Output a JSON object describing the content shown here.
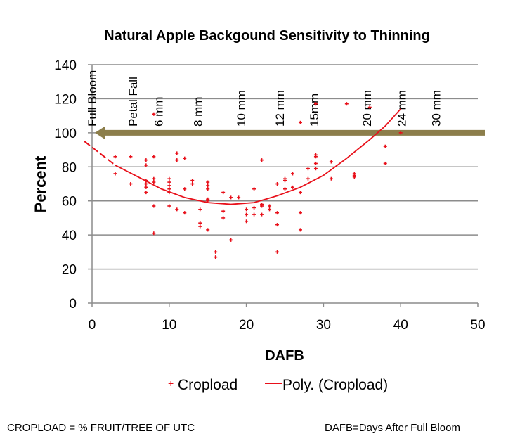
{
  "chart_data": {
    "type": "scatter",
    "title": "Natural Apple Backgound Sensitivity to Thinning",
    "xlabel": "DAFB",
    "ylabel": "Percent",
    "xlim": [
      0,
      50
    ],
    "ylim": [
      0,
      140
    ],
    "xticks": [
      0,
      10,
      20,
      30,
      40,
      50
    ],
    "yticks": [
      0,
      20,
      40,
      60,
      80,
      100,
      120,
      140
    ],
    "grid": "horizontal",
    "legend_position": "bottom",
    "series": [
      {
        "name": "Cropload",
        "kind": "points",
        "color": "#E8101A",
        "points": [
          [
            3,
            86
          ],
          [
            3,
            76
          ],
          [
            5,
            86
          ],
          [
            5,
            70
          ],
          [
            7,
            84
          ],
          [
            7,
            81
          ],
          [
            7,
            72
          ],
          [
            7,
            70
          ],
          [
            7,
            68
          ],
          [
            7,
            65
          ],
          [
            8,
            111
          ],
          [
            8,
            86
          ],
          [
            8,
            73
          ],
          [
            8,
            71
          ],
          [
            8,
            57
          ],
          [
            8,
            41
          ],
          [
            10,
            73
          ],
          [
            10,
            71
          ],
          [
            10,
            69
          ],
          [
            10,
            67
          ],
          [
            10,
            65
          ],
          [
            10,
            57
          ],
          [
            11,
            88
          ],
          [
            11,
            84
          ],
          [
            11,
            55
          ],
          [
            12,
            85
          ],
          [
            12,
            67
          ],
          [
            12,
            53
          ],
          [
            13,
            72
          ],
          [
            13,
            70
          ],
          [
            14,
            55
          ],
          [
            14,
            47
          ],
          [
            14,
            45
          ],
          [
            15,
            71
          ],
          [
            15,
            69
          ],
          [
            15,
            67
          ],
          [
            15,
            61
          ],
          [
            15,
            60
          ],
          [
            15,
            43
          ],
          [
            16,
            30
          ],
          [
            16,
            27
          ],
          [
            17,
            65
          ],
          [
            17,
            54
          ],
          [
            17,
            50
          ],
          [
            18,
            62
          ],
          [
            18,
            37
          ],
          [
            19,
            62
          ],
          [
            20,
            55
          ],
          [
            20,
            52
          ],
          [
            20,
            48
          ],
          [
            21,
            67
          ],
          [
            21,
            56
          ],
          [
            21,
            52
          ],
          [
            22,
            84
          ],
          [
            22,
            58
          ],
          [
            22,
            57
          ],
          [
            22,
            52
          ],
          [
            23,
            57
          ],
          [
            23,
            55
          ],
          [
            24,
            70
          ],
          [
            24,
            53
          ],
          [
            24,
            46
          ],
          [
            24,
            30
          ],
          [
            25,
            73
          ],
          [
            25,
            72
          ],
          [
            25,
            67
          ],
          [
            26,
            76
          ],
          [
            26,
            68
          ],
          [
            27,
            106
          ],
          [
            27,
            65
          ],
          [
            27,
            53
          ],
          [
            27,
            43
          ],
          [
            28,
            79
          ],
          [
            28,
            73
          ],
          [
            29,
            117
          ],
          [
            29,
            87
          ],
          [
            29,
            86
          ],
          [
            29,
            82
          ],
          [
            29,
            79
          ],
          [
            31,
            83
          ],
          [
            31,
            73
          ],
          [
            33,
            117
          ],
          [
            34,
            76
          ],
          [
            34,
            75
          ],
          [
            34,
            74
          ],
          [
            36,
            115
          ],
          [
            38,
            92
          ],
          [
            38,
            82
          ],
          [
            40,
            100
          ]
        ]
      },
      {
        "name": "Poly. (Cropload)",
        "kind": "trendline",
        "color": "#E8101A",
        "points": [
          [
            -1,
            95
          ],
          [
            3,
            81
          ],
          [
            6,
            74
          ],
          [
            9,
            67
          ],
          [
            12,
            62
          ],
          [
            15,
            59
          ],
          [
            18,
            58
          ],
          [
            21,
            59
          ],
          [
            24,
            63
          ],
          [
            27,
            68
          ],
          [
            30,
            75
          ],
          [
            33,
            85
          ],
          [
            36,
            96
          ],
          [
            38,
            104
          ],
          [
            40,
            114
          ]
        ]
      }
    ],
    "annotations": {
      "threshold_arrow": {
        "y": 100,
        "color": "#8C7E4B"
      },
      "stages": [
        {
          "label": "Full Bloom",
          "x": 0
        },
        {
          "label": "Petal Fall",
          "x": 5.3
        },
        {
          "label": "6 mm",
          "x": 8.6
        },
        {
          "label": "8 mm",
          "x": 13.7
        },
        {
          "label": "10 mm",
          "x": 19.3
        },
        {
          "label": "12 mm",
          "x": 24.3
        },
        {
          "label": "15mm",
          "x": 28.8
        },
        {
          "label": "20 mm",
          "x": 35.6
        },
        {
          "label": "24 mm",
          "x": 40.1
        },
        {
          "label": "30 mm",
          "x": 44.6
        }
      ]
    },
    "footnotes": {
      "left": "CROPLOAD = % FRUIT/TREE OF UTC",
      "right": "DAFB=Days After Full Bloom"
    }
  }
}
